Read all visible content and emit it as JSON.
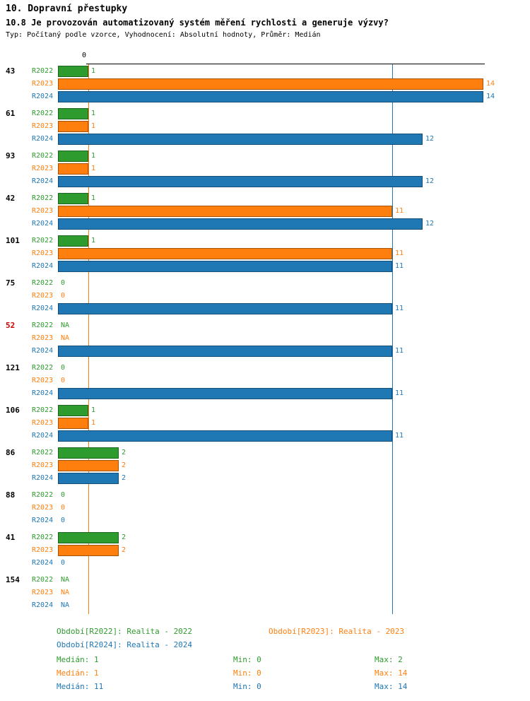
{
  "header": {
    "title": "10. Dopravní přestupky",
    "subtitle": "10.8 Je provozován automatizovaný systém měření rychlosti a generuje výzvy?",
    "meta": "Typ: Počítaný podle vzorce, Vyhodnocení: Absolutní hodnoty, Průměr: Medián"
  },
  "chart_data": {
    "type": "bar",
    "orientation": "horizontal",
    "title": "10.8 Je provozován automatizovaný systém měření rychlosti a generuje výzvy?",
    "categories": [
      "43",
      "61",
      "93",
      "42",
      "101",
      "75",
      "52",
      "121",
      "106",
      "86",
      "88",
      "41",
      "154"
    ],
    "highlighted_category": {
      "id": "52",
      "color": "#cc0000"
    },
    "category_label_color": "#000000",
    "x_axis": {
      "origin_label": "0",
      "min": 0,
      "max": 14,
      "ticks_visible": [
        "0"
      ]
    },
    "series": [
      {
        "name": "R2022",
        "legend": "Období[R2022]: Realita - 2022",
        "color": "#2e9b2e",
        "median": 1,
        "stats": {
          "median": "Medián: 1",
          "min": "Min: 0",
          "max": "Max: 2"
        },
        "values": [
          1,
          1,
          1,
          1,
          1,
          0,
          "NA",
          0,
          1,
          2,
          0,
          2,
          "NA"
        ]
      },
      {
        "name": "R2023",
        "legend": "Období[R2023]: Realita - 2023",
        "color": "#ff7f0e",
        "median": 1,
        "stats": {
          "median": "Medián: 1",
          "min": "Min: 0",
          "max": "Max: 14"
        },
        "values": [
          14,
          1,
          1,
          11,
          11,
          0,
          "NA",
          0,
          1,
          2,
          0,
          2,
          "NA"
        ]
      },
      {
        "name": "R2024",
        "legend": "Období[R2024]: Realita - 2024",
        "color": "#1f77b4",
        "median": 11,
        "stats": {
          "median": "Medián: 11",
          "min": "Min: 0",
          "max": "Max: 14"
        },
        "values": [
          14,
          12,
          12,
          12,
          11,
          11,
          11,
          11,
          11,
          2,
          0,
          0,
          "NA"
        ]
      }
    ]
  }
}
